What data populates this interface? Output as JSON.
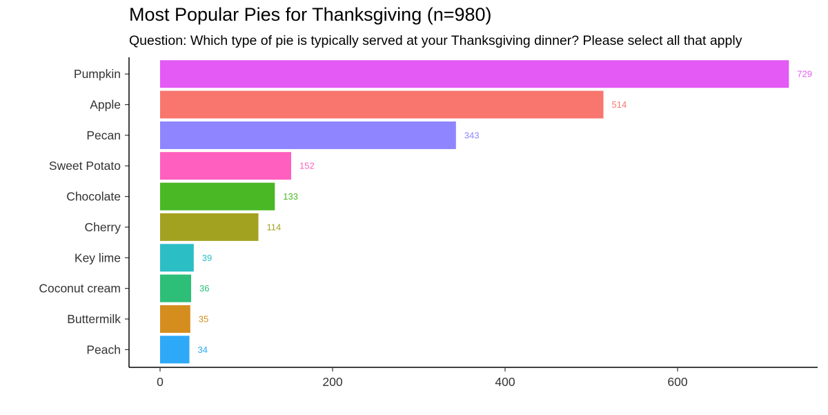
{
  "chart_data": {
    "type": "bar",
    "orientation": "horizontal",
    "title": "Most Popular Pies for Thanksgiving (n=980)",
    "subtitle": "Question: Which type of pie is typically served at your Thanksgiving dinner? Please select all that apply",
    "xlabel": "",
    "ylabel": "",
    "xlim": [
      0,
      760
    ],
    "xticks": [
      0,
      200,
      400,
      600
    ],
    "grid": false,
    "legend": "none",
    "categories": [
      "Pumpkin",
      "Apple",
      "Pecan",
      "Sweet Potato",
      "Chocolate",
      "Cherry",
      "Key lime",
      "Coconut cream",
      "Buttermilk",
      "Peach"
    ],
    "values": [
      729,
      514,
      343,
      152,
      133,
      114,
      39,
      36,
      35,
      34
    ],
    "colors": [
      "#E35AF4",
      "#F8766D",
      "#8F85FF",
      "#FF5FBE",
      "#49B824",
      "#A3A120",
      "#2BBEC4",
      "#2DBE77",
      "#D58D1E",
      "#2EA9F7"
    ]
  }
}
